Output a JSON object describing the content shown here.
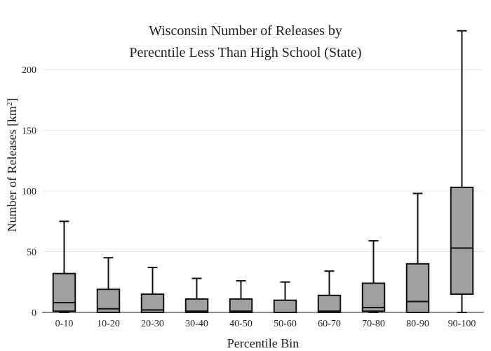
{
  "chart_data": {
    "type": "box",
    "title": "Wisconsin Number of Releases by",
    "title_line2": "Perecntile Less Than High School (State)",
    "xlabel": "Percentile Bin",
    "ylabel": "Number of Releases  [km",
    "ylabel_sup": "2",
    "ylabel_close": "]",
    "ylim": [
      0,
      240
    ],
    "yticks": [
      0,
      50,
      100,
      150,
      200
    ],
    "grid": true,
    "categories": [
      "0-10",
      "10-20",
      "20-30",
      "30-40",
      "40-50",
      "50-60",
      "60-70",
      "70-80",
      "80-90",
      "90-100"
    ],
    "boxes": [
      {
        "min": 0,
        "q1": 1,
        "median": 8,
        "q3": 32,
        "max": 75
      },
      {
        "min": 0,
        "q1": 0,
        "median": 3,
        "q3": 19,
        "max": 45
      },
      {
        "min": 0,
        "q1": 0,
        "median": 2,
        "q3": 15,
        "max": 37
      },
      {
        "min": 0,
        "q1": 0,
        "median": 1,
        "q3": 11,
        "max": 28
      },
      {
        "min": 0,
        "q1": 0,
        "median": 1,
        "q3": 11,
        "max": 26
      },
      {
        "min": 0,
        "q1": 0,
        "median": 0,
        "q3": 10,
        "max": 25
      },
      {
        "min": 0,
        "q1": 0,
        "median": 1,
        "q3": 14,
        "max": 34
      },
      {
        "min": 0,
        "q1": 1,
        "median": 4,
        "q3": 24,
        "max": 59
      },
      {
        "min": 0,
        "q1": 0,
        "median": 9,
        "q3": 40,
        "max": 98
      },
      {
        "min": 0,
        "q1": 15,
        "median": 53,
        "q3": 103,
        "max": 232
      }
    ],
    "colors": {
      "box_fill": "#a0a0a0",
      "box_stroke": "#111111",
      "grid": "#e8e8e8"
    }
  }
}
